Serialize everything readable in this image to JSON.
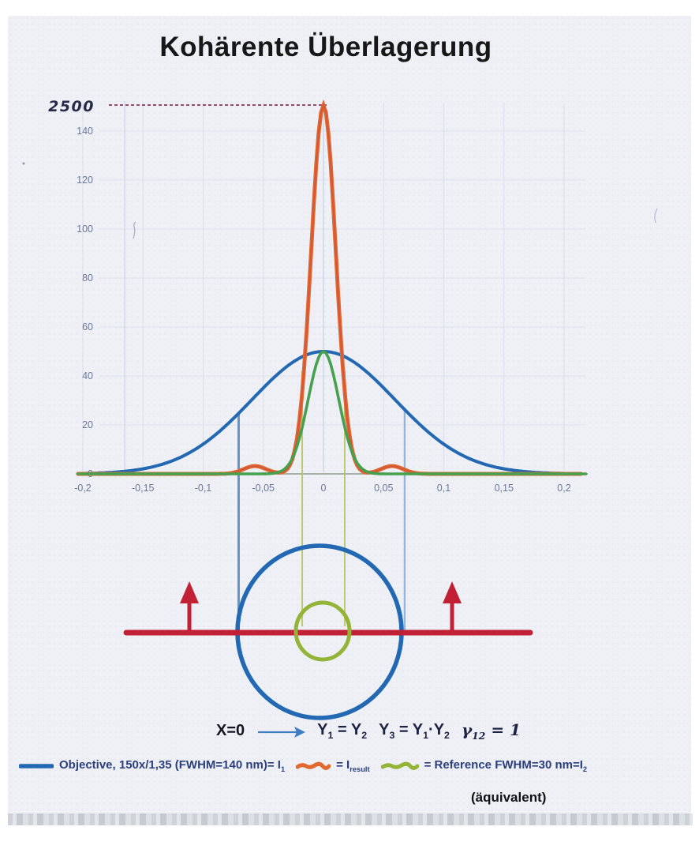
{
  "title": "Kohärente Überlagerung",
  "colors": {
    "objective": "#2268b2",
    "result_outer": "#e2682f",
    "result_inner": "#c94b40",
    "reference": "#47a04e",
    "reference_circle": "#94b438",
    "red": "#c22135",
    "peak_line": "#8e3a5e",
    "grid": "#d7dce8",
    "axis_faint": "#c9cfdd",
    "baseline": "#8a9383",
    "marker_blue": "#4a86c8",
    "marker_green": "#b5c35a",
    "marker_center": "#aecbe8",
    "arrow_blue": "#3f7fc1"
  },
  "chart_data": {
    "type": "line",
    "title": "Kohärente Überlagerung",
    "xlabel": "",
    "ylabel": "",
    "x_range": [
      -0.2,
      0.2
    ],
    "grid": true,
    "legend_position": "bottom",
    "x_tick_values": [
      -0.2,
      -0.15,
      -0.1,
      -0.05,
      0,
      0.05,
      0.1,
      0.15,
      0.2
    ],
    "x_tick_labels": [
      "-0,2",
      "-0,15",
      "-0,1",
      "-0,05",
      "0",
      "0,05",
      "0,1",
      "0,15",
      "0,2"
    ],
    "y_tick_values": [
      0,
      20,
      40,
      60,
      80,
      100,
      120,
      140
    ],
    "y_tick_labels": [
      "0",
      "20",
      "40",
      "60",
      "80",
      "100",
      "120",
      "140"
    ],
    "y_extra_label": "2500",
    "series": [
      {
        "name": "Objective, 150x/1,35 (FWHM=140 nm)= I1",
        "color_key": "objective",
        "shape": "gaussian",
        "peak": 50,
        "center": 0,
        "fwhm": 0.14
      },
      {
        "name": "= Iresult",
        "color_key": "result_outer",
        "shape": "gaussian",
        "peak": 2500,
        "drawn_peak": 150.5,
        "center": 0,
        "fwhm": 0.024,
        "note": "peak clipped at the 2500 line",
        "side_lobes": [
          {
            "center": -0.057,
            "peak": 3.2,
            "fwhm": 0.022
          },
          {
            "center": 0.057,
            "peak": 3.2,
            "fwhm": 0.022
          }
        ]
      },
      {
        "name": "= Reference FWHM=30 nm=I2 (äquivalent)",
        "color_key": "reference",
        "shape": "gaussian",
        "peak": 50,
        "center": 0,
        "fwhm": 0.03
      }
    ],
    "markers": {
      "objective_fwhm_x": [
        -0.0705,
        0.0675
      ],
      "reference_fwhm_x": [
        -0.0177,
        0.0177
      ],
      "center_x": 0
    },
    "peak_annotation": {
      "label": "2500",
      "value": 2500
    }
  },
  "formula": {
    "x0": "X=0",
    "eq1": [
      {
        "t": "Y",
        "s": "1"
      },
      {
        "t": " = Y",
        "s": "2"
      }
    ],
    "eq2": [
      {
        "t": "Y",
        "s": "3"
      },
      {
        "t": " = Y",
        "s": "1"
      },
      {
        "t": "·Y",
        "s": "2"
      }
    ],
    "eq3": [
      {
        "t": "γ",
        "s": "12"
      },
      {
        "t": " = 1"
      }
    ]
  },
  "legend": {
    "items": [
      {
        "swatch": "objective",
        "label": [
          {
            "t": "Objective, 150x/1,35 (FWHM=140 nm)= I",
            "s": "1"
          }
        ]
      },
      {
        "swatch": "result",
        "label": [
          {
            "t": "= I",
            "s": "result"
          }
        ]
      },
      {
        "swatch": "reference",
        "label": [
          {
            "t": "= Reference  FWHM=30 nm=I",
            "s": "2"
          }
        ]
      }
    ],
    "note": "(äquivalent)"
  }
}
